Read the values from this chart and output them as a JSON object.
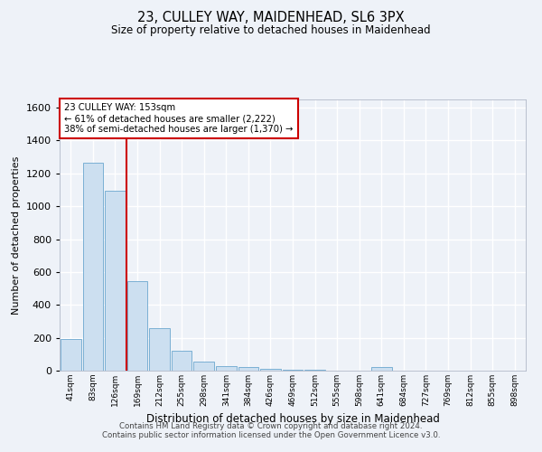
{
  "title": "23, CULLEY WAY, MAIDENHEAD, SL6 3PX",
  "subtitle": "Size of property relative to detached houses in Maidenhead",
  "xlabel": "Distribution of detached houses by size in Maidenhead",
  "ylabel": "Number of detached properties",
  "bar_color": "#ccdff0",
  "bar_edge_color": "#7ab0d4",
  "categories": [
    "41sqm",
    "83sqm",
    "126sqm",
    "169sqm",
    "212sqm",
    "255sqm",
    "298sqm",
    "341sqm",
    "384sqm",
    "426sqm",
    "469sqm",
    "512sqm",
    "555sqm",
    "598sqm",
    "641sqm",
    "684sqm",
    "727sqm",
    "769sqm",
    "812sqm",
    "855sqm",
    "898sqm"
  ],
  "values": [
    193,
    1265,
    1095,
    547,
    260,
    120,
    55,
    30,
    20,
    10,
    5,
    3,
    2,
    2,
    20,
    2,
    2,
    2,
    2,
    2,
    2
  ],
  "ylim": [
    0,
    1650
  ],
  "yticks": [
    0,
    200,
    400,
    600,
    800,
    1000,
    1200,
    1400,
    1600
  ],
  "property_line_x": 2.5,
  "annotation_text_line1": "23 CULLEY WAY: 153sqm",
  "annotation_text_line2": "← 61% of detached houses are smaller (2,222)",
  "annotation_text_line3": "38% of semi-detached houses are larger (1,370) →",
  "annotation_box_color": "#ffffff",
  "annotation_border_color": "#cc0000",
  "vline_color": "#cc0000",
  "footer1": "Contains HM Land Registry data © Crown copyright and database right 2024.",
  "footer2": "Contains public sector information licensed under the Open Government Licence v3.0.",
  "bg_color": "#eef2f8",
  "grid_color": "#ffffff"
}
